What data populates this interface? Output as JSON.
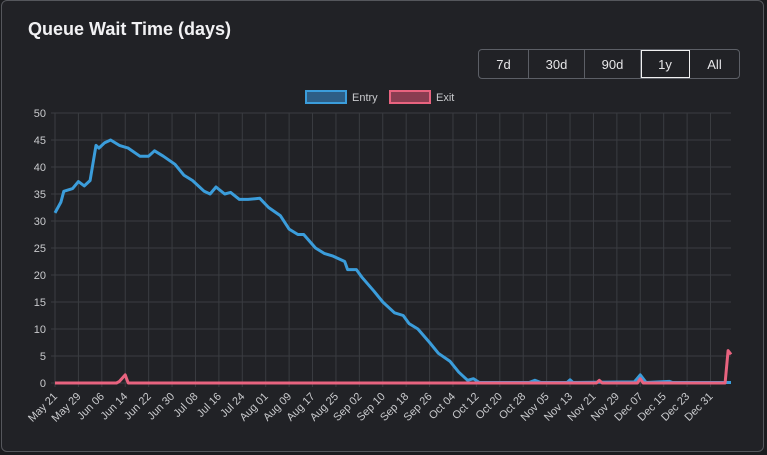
{
  "title": "Queue Wait Time (days)",
  "range_buttons": [
    {
      "label": "7d",
      "active": false
    },
    {
      "label": "30d",
      "active": false
    },
    {
      "label": "90d",
      "active": false
    },
    {
      "label": "1y",
      "active": true
    },
    {
      "label": "All",
      "active": false
    }
  ],
  "chart_data": {
    "type": "line",
    "title": "",
    "xlabel": "",
    "ylabel": "",
    "ylim": [
      0,
      50
    ],
    "yticks": [
      0,
      5,
      10,
      15,
      20,
      25,
      30,
      35,
      40,
      45,
      50
    ],
    "xticks": [
      "May 21",
      "May 29",
      "Jun 06",
      "Jun 14",
      "Jun 22",
      "Jun 30",
      "Jul 08",
      "Jul 16",
      "Jul 24",
      "Aug 01",
      "Aug 09",
      "Aug 17",
      "Aug 25",
      "Sep 02",
      "Sep 10",
      "Sep 18",
      "Sep 26",
      "Oct 04",
      "Oct 12",
      "Oct 20",
      "Oct 28",
      "Nov 05",
      "Nov 13",
      "Nov 21",
      "Nov 29",
      "Dec 07",
      "Dec 15",
      "Dec 23",
      "Dec 31"
    ],
    "xlim": [
      "May 21",
      "Jan 07"
    ],
    "grid": true,
    "legend": "top-center",
    "series": [
      {
        "name": "Entry",
        "color": "#3b9ddb",
        "points": [
          [
            "May 21",
            31.5
          ],
          [
            "May 23",
            33.5
          ],
          [
            "May 24",
            35.5
          ],
          [
            "May 27",
            36
          ],
          [
            "May 29",
            37.3
          ],
          [
            "May 31",
            36.5
          ],
          [
            "Jun 02",
            37.5
          ],
          [
            "Jun 04",
            44
          ],
          [
            "Jun 05",
            43.5
          ],
          [
            "Jun 07",
            44.5
          ],
          [
            "Jun 09",
            45
          ],
          [
            "Jun 12",
            44
          ],
          [
            "Jun 15",
            43.5
          ],
          [
            "Jun 19",
            42
          ],
          [
            "Jun 22",
            42
          ],
          [
            "Jun 24",
            43
          ],
          [
            "Jun 27",
            42
          ],
          [
            "Jul 01",
            40.5
          ],
          [
            "Jul 04",
            38.5
          ],
          [
            "Jul 07",
            37.5
          ],
          [
            "Jul 11",
            35.5
          ],
          [
            "Jul 13",
            35
          ],
          [
            "Jul 15",
            36.3
          ],
          [
            "Jul 18",
            35
          ],
          [
            "Jul 20",
            35.3
          ],
          [
            "Jul 23",
            34
          ],
          [
            "Jul 26",
            34
          ],
          [
            "Jul 30",
            34.2
          ],
          [
            "Aug 02",
            32.5
          ],
          [
            "Aug 06",
            31
          ],
          [
            "Aug 09",
            28.5
          ],
          [
            "Aug 12",
            27.5
          ],
          [
            "Aug 14",
            27.5
          ],
          [
            "Aug 18",
            25
          ],
          [
            "Aug 21",
            24
          ],
          [
            "Aug 24",
            23.5
          ],
          [
            "Aug 28",
            22.5
          ],
          [
            "Aug 29",
            21
          ],
          [
            "Sep 01",
            21
          ],
          [
            "Sep 03",
            19.5
          ],
          [
            "Sep 07",
            17
          ],
          [
            "Sep 10",
            15
          ],
          [
            "Sep 14",
            13
          ],
          [
            "Sep 17",
            12.5
          ],
          [
            "Sep 19",
            11
          ],
          [
            "Sep 22",
            10
          ],
          [
            "Sep 26",
            7.5
          ],
          [
            "Sep 29",
            5.5
          ],
          [
            "Oct 03",
            4
          ],
          [
            "Oct 06",
            2
          ],
          [
            "Oct 09",
            0.5
          ],
          [
            "Oct 11",
            0.8
          ],
          [
            "Oct 13",
            0.1
          ],
          [
            "Oct 30",
            0.1
          ],
          [
            "Nov 01",
            0.5
          ],
          [
            "Nov 03",
            0.1
          ],
          [
            "Nov 12",
            0.1
          ],
          [
            "Nov 13",
            0.6
          ],
          [
            "Nov 14",
            0.1
          ],
          [
            "Dec 05",
            0.2
          ],
          [
            "Dec 07",
            1.5
          ],
          [
            "Dec 09",
            0.1
          ],
          [
            "Dec 17",
            0.3
          ],
          [
            "Dec 18",
            0.1
          ],
          [
            "Jan 07",
            0.1
          ]
        ]
      },
      {
        "name": "Exit",
        "color": "#e8637f",
        "points": [
          [
            "May 21",
            0
          ],
          [
            "Jun 11",
            0
          ],
          [
            "Jun 12",
            0.3
          ],
          [
            "Jun 14",
            1.5
          ],
          [
            "Jun 15",
            0
          ],
          [
            "Nov 22",
            0
          ],
          [
            "Nov 23",
            0.5
          ],
          [
            "Nov 24",
            0
          ],
          [
            "Dec 06",
            0
          ],
          [
            "Dec 07",
            0.8
          ],
          [
            "Dec 08",
            0
          ],
          [
            "Jan 05",
            0
          ],
          [
            "Jan 06",
            6
          ],
          [
            "Jan 07",
            5.3
          ]
        ]
      }
    ]
  }
}
